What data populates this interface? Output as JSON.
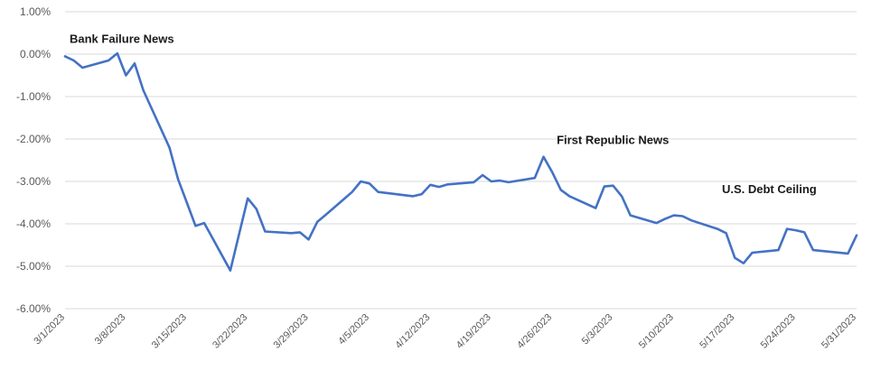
{
  "chart_data": {
    "type": "line",
    "title": "",
    "xlabel": "",
    "ylabel": "",
    "ylim": [
      -6.0,
      1.0
    ],
    "yticks": [
      1.0,
      0.0,
      -1.0,
      -2.0,
      -3.0,
      -4.0,
      -5.0,
      -6.0
    ],
    "ytick_labels": [
      "1.00%",
      "0.00%",
      "-1.00%",
      "-2.00%",
      "-3.00%",
      "-4.00%",
      "-5.00%",
      "-6.00%"
    ],
    "x_start": "2023-03-01",
    "x_end": "2023-05-31",
    "xtick_dates": [
      "2023-03-01",
      "2023-03-08",
      "2023-03-15",
      "2023-03-22",
      "2023-03-29",
      "2023-04-05",
      "2023-04-12",
      "2023-04-19",
      "2023-04-26",
      "2023-05-03",
      "2023-05-10",
      "2023-05-17",
      "2023-05-24",
      "2023-05-31"
    ],
    "xtick_labels": [
      "3/1/2023",
      "3/8/2023",
      "3/15/2023",
      "3/22/2023",
      "3/29/2023",
      "4/5/2023",
      "4/12/2023",
      "4/19/2023",
      "4/26/2023",
      "5/3/2023",
      "5/10/2023",
      "5/17/2023",
      "5/24/2023",
      "5/31/2023"
    ],
    "grid": "horizontal",
    "legend": "none",
    "series": [
      {
        "color": "#4472c4",
        "x": [
          "2023-03-01",
          "2023-03-02",
          "2023-03-03",
          "2023-03-06",
          "2023-03-07",
          "2023-03-08",
          "2023-03-09",
          "2023-03-10",
          "2023-03-13",
          "2023-03-14",
          "2023-03-15",
          "2023-03-16",
          "2023-03-17",
          "2023-03-20",
          "2023-03-21",
          "2023-03-22",
          "2023-03-23",
          "2023-03-24",
          "2023-03-27",
          "2023-03-28",
          "2023-03-29",
          "2023-03-30",
          "2023-03-31",
          "2023-04-03",
          "2023-04-04",
          "2023-04-05",
          "2023-04-06",
          "2023-04-10",
          "2023-04-11",
          "2023-04-12",
          "2023-04-13",
          "2023-04-14",
          "2023-04-17",
          "2023-04-18",
          "2023-04-19",
          "2023-04-20",
          "2023-04-21",
          "2023-04-24",
          "2023-04-25",
          "2023-04-26",
          "2023-04-27",
          "2023-04-28",
          "2023-05-01",
          "2023-05-02",
          "2023-05-03",
          "2023-05-04",
          "2023-05-05",
          "2023-05-08",
          "2023-05-09",
          "2023-05-10",
          "2023-05-11",
          "2023-05-12",
          "2023-05-15",
          "2023-05-16",
          "2023-05-17",
          "2023-05-18",
          "2023-05-19",
          "2023-05-22",
          "2023-05-23",
          "2023-05-24",
          "2023-05-25",
          "2023-05-26",
          "2023-05-30",
          "2023-05-31"
        ],
        "y": [
          -0.05,
          -0.15,
          -0.32,
          -0.15,
          0.02,
          -0.5,
          -0.22,
          -0.85,
          -2.2,
          -2.95,
          -3.5,
          -4.05,
          -3.98,
          -5.1,
          -4.25,
          -3.4,
          -3.65,
          -4.18,
          -4.22,
          -4.2,
          -4.37,
          -3.95,
          -3.78,
          -3.25,
          -3.0,
          -3.05,
          -3.25,
          -3.35,
          -3.3,
          -3.08,
          -3.13,
          -3.07,
          -3.02,
          -2.85,
          -3.0,
          -2.98,
          -3.02,
          -2.92,
          -2.42,
          -2.78,
          -3.2,
          -3.35,
          -3.63,
          -3.12,
          -3.1,
          -3.35,
          -3.8,
          -3.98,
          -3.88,
          -3.8,
          -3.82,
          -3.92,
          -4.12,
          -4.22,
          -4.8,
          -4.93,
          -4.68,
          -4.62,
          -4.12,
          -4.15,
          -4.2,
          -4.62,
          -4.7,
          -4.27
        ]
      }
    ],
    "annotations": [
      {
        "text": "Bank Failure News",
        "x": "2023-03-01",
        "y": 0.27
      },
      {
        "text": "First Republic News",
        "x": "2023-04-26",
        "y": -2.12
      },
      {
        "text": "U.S. Debt Ceiling",
        "x": "2023-05-15",
        "y": -3.28
      }
    ]
  }
}
